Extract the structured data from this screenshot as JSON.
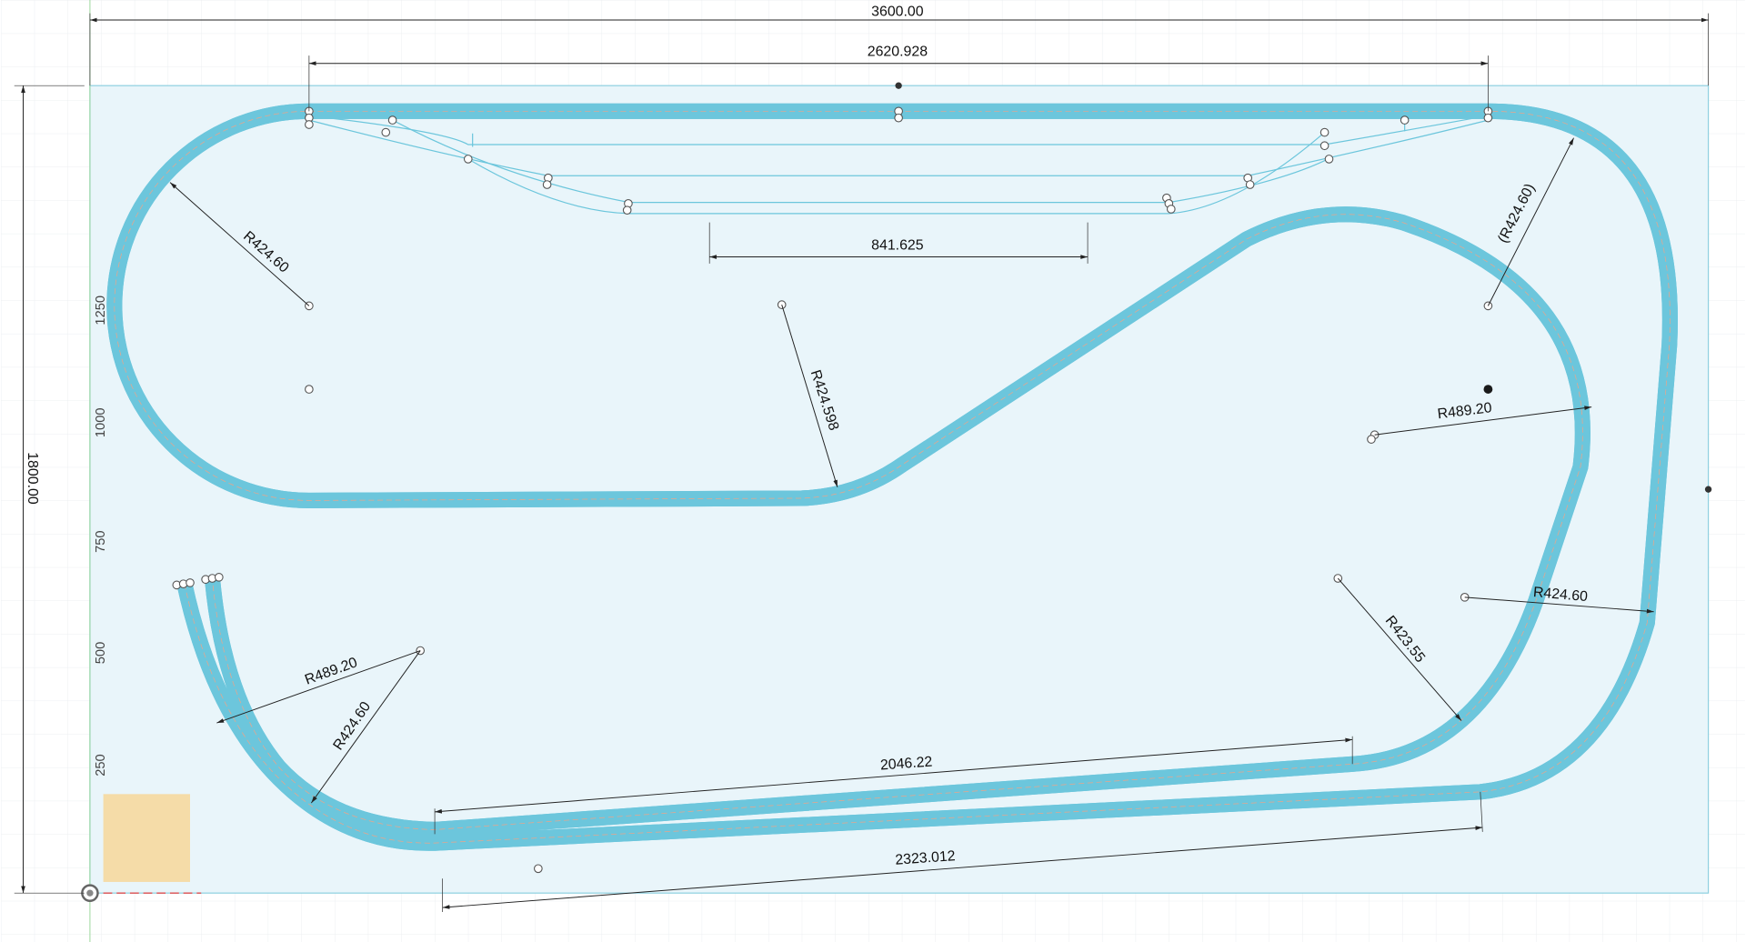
{
  "dimensions": {
    "overall_width": "3600.00",
    "overall_height": "1800.00",
    "top_span": "2620.928",
    "siding_length": "841.625",
    "lower_inner_straight": "2046.22",
    "lower_outer_straight": "2323.012"
  },
  "radii": [
    "R424.60",
    "R424.598",
    "(R424.60)",
    "R489.20",
    "R424.60",
    "R423.55",
    "R489.20",
    "R424.60"
  ],
  "axis_labels": [
    "1250",
    "1000",
    "750",
    "500",
    "250"
  ]
}
